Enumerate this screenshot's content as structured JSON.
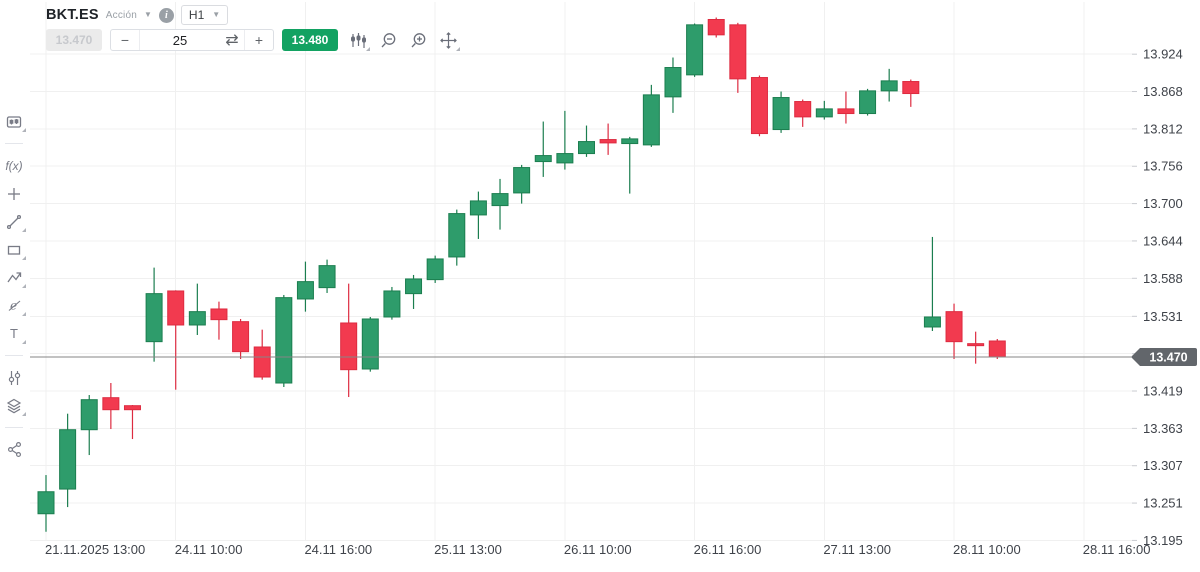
{
  "header": {
    "symbol": "BKT.ES",
    "instrument_type": "Acción",
    "timeframe": "H1"
  },
  "toolbar": {
    "sell_price": "13.470",
    "quantity": "25",
    "minus_label": "−",
    "plus_label": "+",
    "swap_glyph": "⇄",
    "buy_price": "13.480",
    "icons": [
      "chart-style-icon",
      "zoom-out-icon",
      "zoom-in-icon",
      "pan-crosshair-icon"
    ]
  },
  "sidebar": {
    "fx_label": "f(x)",
    "text_tool_label": "T",
    "eraser_glyph": "ℯ",
    "icons": [
      "chart-type-icon",
      "indicators-fx-icon",
      "add-icon",
      "trend-line-icon",
      "rectangle-tool-icon",
      "zigzag-pattern-icon",
      "eraser-icon",
      "text-tool-icon",
      "compare-bars-icon",
      "layers-icon",
      "share-icon"
    ]
  },
  "colors": {
    "up_fill": "#2e9c6b",
    "up_stroke": "#1b7e4f",
    "down_fill": "#f23a4f",
    "down_stroke": "#dd2b40",
    "buy_badge_green": "#12a262",
    "grid": "#f0f0f0",
    "axis_tick": "#c9cbd0",
    "axis_text": "#3f434a",
    "price_line": "#858585",
    "price_tag_bg": "#62666b",
    "price_tag_text": "#ffffff"
  },
  "chart_data": {
    "type": "candlestick",
    "symbol": "BKT.ES",
    "timeframe": "H1",
    "current_price": 13.47,
    "price_label": "13.470",
    "y_axis": {
      "min": 13.195,
      "max": 13.924,
      "step": 0.056,
      "grid": true,
      "ticks": [
        {
          "price": 13.924,
          "label": "13.924"
        },
        {
          "price": 13.868,
          "label": "13.868"
        },
        {
          "price": 13.812,
          "label": "13.812"
        },
        {
          "price": 13.756,
          "label": "13.756"
        },
        {
          "price": 13.7,
          "label": "13.700"
        },
        {
          "price": 13.644,
          "label": "13.644"
        },
        {
          "price": 13.588,
          "label": "13.588"
        },
        {
          "price": 13.531,
          "label": "13.531"
        },
        {
          "price": 13.475,
          "label": ""
        },
        {
          "price": 13.419,
          "label": "13.419"
        },
        {
          "price": 13.363,
          "label": "13.363"
        },
        {
          "price": 13.307,
          "label": "13.307"
        },
        {
          "price": 13.251,
          "label": "13.251"
        },
        {
          "price": 13.195,
          "label": "13.195"
        }
      ]
    },
    "x_axis": {
      "grid": true,
      "ticks": [
        {
          "index": 0,
          "label": "21.11.2025 13:00"
        },
        {
          "index": 6,
          "label": "24.11 10:00"
        },
        {
          "index": 12,
          "label": "24.11 16:00"
        },
        {
          "index": 18,
          "label": "25.11 13:00"
        },
        {
          "index": 24,
          "label": "26.11 10:00"
        },
        {
          "index": 30,
          "label": "26.11 16:00"
        },
        {
          "index": 36,
          "label": "27.11 13:00"
        },
        {
          "index": 42,
          "label": "28.11 10:00"
        },
        {
          "index": 48,
          "label": "28.11 16:00"
        }
      ]
    },
    "candles": [
      [
        "21.11 13:00",
        13.235,
        13.293,
        13.208,
        13.268
      ],
      [
        "21.11 14:00",
        13.272,
        13.385,
        13.245,
        13.361
      ],
      [
        "21.11 15:00",
        13.361,
        13.413,
        13.323,
        13.406
      ],
      [
        "21.11 16:00",
        13.409,
        13.431,
        13.362,
        13.391
      ],
      [
        "21.11 17:00",
        13.397,
        13.398,
        13.347,
        13.391
      ],
      [
        "24.11 09:00",
        13.493,
        13.604,
        13.463,
        13.565
      ],
      [
        "24.11 10:00",
        13.569,
        13.57,
        13.421,
        13.518
      ],
      [
        "24.11 11:00",
        13.518,
        13.58,
        13.503,
        13.538
      ],
      [
        "24.11 12:00",
        13.542,
        13.553,
        13.496,
        13.526
      ],
      [
        "24.11 13:00",
        13.523,
        13.527,
        13.467,
        13.478
      ],
      [
        "24.11 14:00",
        13.485,
        13.511,
        13.436,
        13.44
      ],
      [
        "24.11 15:00",
        13.431,
        13.563,
        13.425,
        13.559
      ],
      [
        "24.11 16:00",
        13.557,
        13.613,
        13.538,
        13.583
      ],
      [
        "24.11 17:00",
        13.574,
        13.616,
        13.566,
        13.607
      ],
      [
        "25.11 09:00",
        13.521,
        13.58,
        13.41,
        13.451
      ],
      [
        "25.11 10:00",
        13.452,
        13.53,
        13.448,
        13.527
      ],
      [
        "25.11 11:00",
        13.53,
        13.575,
        13.526,
        13.569
      ],
      [
        "25.11 12:00",
        13.565,
        13.593,
        13.542,
        13.587
      ],
      [
        "25.11 13:00",
        13.586,
        13.622,
        13.581,
        13.617
      ],
      [
        "25.11 14:00",
        13.62,
        13.691,
        13.607,
        13.685
      ],
      [
        "25.11 15:00",
        13.683,
        13.718,
        13.647,
        13.704
      ],
      [
        "25.11 16:00",
        13.697,
        13.737,
        13.661,
        13.715
      ],
      [
        "25.11 17:00",
        13.716,
        13.758,
        13.7,
        13.754
      ],
      [
        "26.11 09:00",
        13.763,
        13.823,
        13.74,
        13.772
      ],
      [
        "26.11 10:00",
        13.761,
        13.839,
        13.751,
        13.775
      ],
      [
        "26.11 11:00",
        13.775,
        13.817,
        13.77,
        13.793
      ],
      [
        "26.11 12:00",
        13.796,
        13.82,
        13.773,
        13.791
      ],
      [
        "26.11 13:00",
        13.79,
        13.8,
        13.715,
        13.797
      ],
      [
        "26.11 14:00",
        13.788,
        13.878,
        13.785,
        13.863
      ],
      [
        "26.11 15:00",
        13.86,
        13.919,
        13.836,
        13.904
      ],
      [
        "26.11 16:00",
        13.893,
        13.97,
        13.89,
        13.968
      ],
      [
        "26.11 17:00",
        13.976,
        13.979,
        13.949,
        13.953
      ],
      [
        "27.11 09:00",
        13.968,
        13.971,
        13.866,
        13.887
      ],
      [
        "27.11 10:00",
        13.889,
        13.892,
        13.801,
        13.805
      ],
      [
        "27.11 11:00",
        13.811,
        13.868,
        13.806,
        13.859
      ],
      [
        "27.11 12:00",
        13.853,
        13.856,
        13.815,
        13.83
      ],
      [
        "27.11 13:00",
        13.83,
        13.854,
        13.826,
        13.842
      ],
      [
        "27.11 14:00",
        13.842,
        13.868,
        13.82,
        13.835
      ],
      [
        "27.11 15:00",
        13.835,
        13.872,
        13.832,
        13.869
      ],
      [
        "27.11 16:00",
        13.869,
        13.902,
        13.853,
        13.884
      ],
      [
        "27.11 17:00",
        13.883,
        13.886,
        13.845,
        13.865
      ],
      [
        "28.11 09:00",
        13.515,
        13.65,
        13.509,
        13.53
      ],
      [
        "28.11 10:00",
        13.538,
        13.55,
        13.467,
        13.493
      ],
      [
        "28.11 11:00",
        13.49,
        13.508,
        13.46,
        13.487
      ],
      [
        "28.11 12:00",
        13.494,
        13.497,
        13.467,
        13.47
      ]
    ]
  }
}
